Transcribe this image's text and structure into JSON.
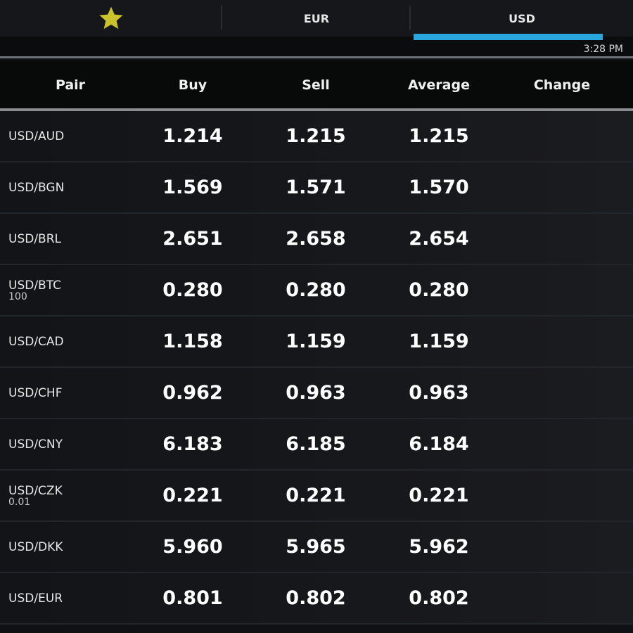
{
  "tabs": {
    "favorites_icon": "star-icon",
    "favorites_color": "#c9c22c",
    "eur_label": "EUR",
    "usd_label": "USD",
    "active": "USD",
    "indicator_color": "#2aa6df"
  },
  "timestamp": "3:28 PM",
  "table": {
    "headers": {
      "pair": "Pair",
      "buy": "Buy",
      "sell": "Sell",
      "average": "Average",
      "change": "Change"
    },
    "rows": [
      {
        "pair": "USD/AUD",
        "sub": "",
        "buy": "1.214",
        "sell": "1.215",
        "average": "1.215",
        "change": ""
      },
      {
        "pair": "USD/BGN",
        "sub": "",
        "buy": "1.569",
        "sell": "1.571",
        "average": "1.570",
        "change": ""
      },
      {
        "pair": "USD/BRL",
        "sub": "",
        "buy": "2.651",
        "sell": "2.658",
        "average": "2.654",
        "change": ""
      },
      {
        "pair": "USD/BTC",
        "sub": "100",
        "buy": "0.280",
        "sell": "0.280",
        "average": "0.280",
        "change": ""
      },
      {
        "pair": "USD/CAD",
        "sub": "",
        "buy": "1.158",
        "sell": "1.159",
        "average": "1.159",
        "change": ""
      },
      {
        "pair": "USD/CHF",
        "sub": "",
        "buy": "0.962",
        "sell": "0.963",
        "average": "0.963",
        "change": ""
      },
      {
        "pair": "USD/CNY",
        "sub": "",
        "buy": "6.183",
        "sell": "6.185",
        "average": "6.184",
        "change": ""
      },
      {
        "pair": "USD/CZK",
        "sub": "0.01",
        "buy": "0.221",
        "sell": "0.221",
        "average": "0.221",
        "change": ""
      },
      {
        "pair": "USD/DKK",
        "sub": "",
        "buy": "5.960",
        "sell": "5.965",
        "average": "5.962",
        "change": ""
      },
      {
        "pair": "USD/EUR",
        "sub": "",
        "buy": "0.801",
        "sell": "0.802",
        "average": "0.802",
        "change": ""
      }
    ]
  }
}
